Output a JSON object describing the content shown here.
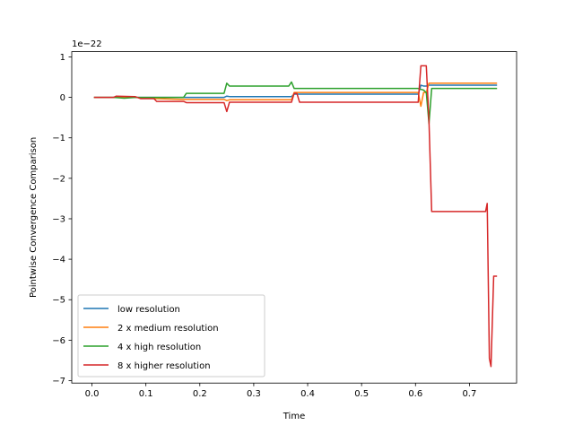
{
  "chart_data": {
    "type": "line",
    "xlabel": "Time",
    "ylabel": "Pointwise Convergence Comparison",
    "offset_label": "1e−22",
    "xlim": [
      -0.0375,
      0.7875
    ],
    "ylim": [
      -7.06,
      1.13
    ],
    "x_ticks": [
      {
        "value": 0.0,
        "label": "0.0"
      },
      {
        "value": 0.1,
        "label": "0.1"
      },
      {
        "value": 0.2,
        "label": "0.2"
      },
      {
        "value": 0.3,
        "label": "0.3"
      },
      {
        "value": 0.4,
        "label": "0.4"
      },
      {
        "value": 0.5,
        "label": "0.5"
      },
      {
        "value": 0.6,
        "label": "0.6"
      },
      {
        "value": 0.7,
        "label": "0.7"
      }
    ],
    "y_ticks": [
      {
        "value": 1,
        "label": "1"
      },
      {
        "value": 0,
        "label": "0"
      },
      {
        "value": -1,
        "label": "−1"
      },
      {
        "value": -2,
        "label": "−2"
      },
      {
        "value": -3,
        "label": "−3"
      },
      {
        "value": -4,
        "label": "−4"
      },
      {
        "value": -5,
        "label": "−5"
      },
      {
        "value": -6,
        "label": "−6"
      },
      {
        "value": -7,
        "label": "−7"
      }
    ],
    "grid": false,
    "legend_position": "lower-left",
    "series": [
      {
        "name": "low resolution",
        "color": "#1f77b4",
        "points": [
          [
            0.005,
            0.0
          ],
          [
            0.04,
            0.0
          ],
          [
            0.08,
            0.0
          ],
          [
            0.12,
            0.0
          ],
          [
            0.17,
            0.0
          ],
          [
            0.245,
            0.0
          ],
          [
            0.25,
            0.03
          ],
          [
            0.255,
            0.02
          ],
          [
            0.37,
            0.02
          ],
          [
            0.375,
            0.08
          ],
          [
            0.38,
            0.08
          ],
          [
            0.605,
            0.08
          ],
          [
            0.61,
            0.3
          ],
          [
            0.615,
            0.28
          ],
          [
            0.62,
            0.28
          ],
          [
            0.625,
            0.3
          ],
          [
            0.75,
            0.3
          ]
        ]
      },
      {
        "name": "2 x medium resolution",
        "color": "#ff7f0e",
        "points": [
          [
            0.005,
            0.0
          ],
          [
            0.04,
            0.0
          ],
          [
            0.08,
            0.0
          ],
          [
            0.12,
            -0.03
          ],
          [
            0.17,
            -0.05
          ],
          [
            0.245,
            -0.05
          ],
          [
            0.25,
            -0.08
          ],
          [
            0.255,
            -0.06
          ],
          [
            0.37,
            -0.06
          ],
          [
            0.375,
            0.12
          ],
          [
            0.38,
            0.12
          ],
          [
            0.605,
            0.12
          ],
          [
            0.61,
            -0.22
          ],
          [
            0.615,
            0.12
          ],
          [
            0.62,
            0.12
          ],
          [
            0.625,
            0.35
          ],
          [
            0.75,
            0.35
          ]
        ]
      },
      {
        "name": "4 x high resolution",
        "color": "#2ca02c",
        "points": [
          [
            0.005,
            0.0
          ],
          [
            0.04,
            0.0
          ],
          [
            0.06,
            -0.02
          ],
          [
            0.08,
            0.0
          ],
          [
            0.12,
            0.0
          ],
          [
            0.17,
            0.0
          ],
          [
            0.175,
            0.1
          ],
          [
            0.245,
            0.1
          ],
          [
            0.25,
            0.35
          ],
          [
            0.255,
            0.28
          ],
          [
            0.365,
            0.28
          ],
          [
            0.37,
            0.38
          ],
          [
            0.375,
            0.22
          ],
          [
            0.605,
            0.22
          ],
          [
            0.61,
            0.2
          ],
          [
            0.615,
            0.18
          ],
          [
            0.62,
            0.12
          ],
          [
            0.625,
            -0.65
          ],
          [
            0.63,
            0.22
          ],
          [
            0.75,
            0.22
          ]
        ]
      },
      {
        "name": "8 x higher resolution",
        "color": "#d62728",
        "points": [
          [
            0.005,
            0.0
          ],
          [
            0.04,
            0.0
          ],
          [
            0.045,
            0.03
          ],
          [
            0.08,
            0.02
          ],
          [
            0.09,
            -0.03
          ],
          [
            0.115,
            -0.03
          ],
          [
            0.12,
            -0.1
          ],
          [
            0.17,
            -0.1
          ],
          [
            0.175,
            -0.13
          ],
          [
            0.245,
            -0.13
          ],
          [
            0.25,
            -0.35
          ],
          [
            0.255,
            -0.12
          ],
          [
            0.37,
            -0.12
          ],
          [
            0.375,
            0.1
          ],
          [
            0.38,
            0.1
          ],
          [
            0.385,
            -0.12
          ],
          [
            0.605,
            -0.12
          ],
          [
            0.61,
            0.78
          ],
          [
            0.62,
            0.78
          ],
          [
            0.625,
            -0.58
          ],
          [
            0.63,
            -2.82
          ],
          [
            0.73,
            -2.82
          ],
          [
            0.733,
            -2.62
          ],
          [
            0.737,
            -6.45
          ],
          [
            0.74,
            -6.65
          ],
          [
            0.745,
            -4.42
          ],
          [
            0.75,
            -4.42
          ]
        ]
      }
    ]
  }
}
